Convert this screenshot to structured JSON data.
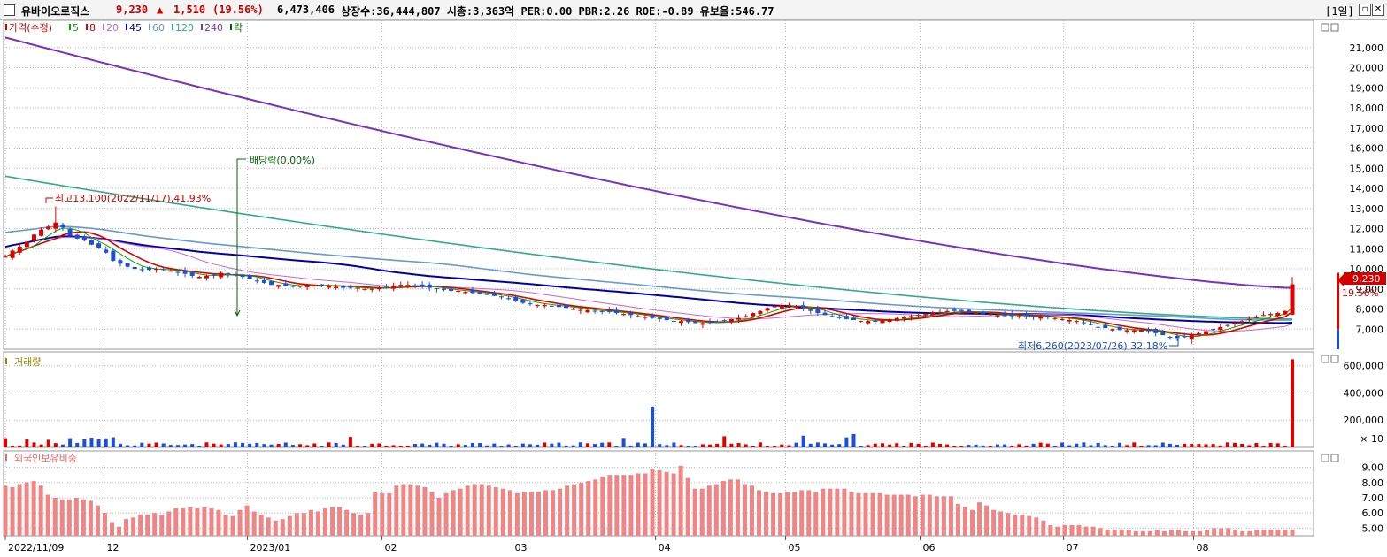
{
  "header": {
    "name": "유바이오로직스",
    "price": "9,230",
    "arrow": "▲",
    "change": "1,510",
    "change_pct": "(19.56%)",
    "volume": "6,473,406",
    "stats": "상장수:36,444,807 시총:3,363억 PER:0.00 PBR:2.26 ROE:-0.89 유보율:546.77",
    "period": "[1일]"
  },
  "price_legend": [
    {
      "text": "가격(수정)",
      "color": "#cc0000"
    },
    {
      "text": "5",
      "color": "#00aa00"
    },
    {
      "text": "8",
      "color": "#dd0000"
    },
    {
      "text": "20",
      "color": "#cc66cc"
    },
    {
      "text": "45",
      "color": "#0000aa"
    },
    {
      "text": "60",
      "color": "#6699cc"
    },
    {
      "text": "120",
      "color": "#33aa88"
    },
    {
      "text": "240",
      "color": "#7733bb"
    },
    {
      "text": "락",
      "color": "#006600"
    }
  ],
  "volume_legend": {
    "text": "거래량",
    "color": "#998800"
  },
  "foreign_legend": {
    "text": "외국인보유비중",
    "color": "#ee6666"
  },
  "annotations": {
    "high": "최고13,100(2022/11/17),41.93%",
    "low": "최저6,260(2023/07/26),32.18%",
    "dividend": "배당락(0.00%)"
  },
  "current_tag": {
    "price": "9,230",
    "pct": "19.56%"
  },
  "colors": {
    "up": "#e00000",
    "down": "#1c4fd8",
    "foreign": "#f08585",
    "grid": "#b7b7b7",
    "bg": "#ffffff"
  },
  "chart_data": [
    {
      "type": "candlestick",
      "title": "가격(수정)",
      "ylim": [
        6000,
        22000
      ],
      "y_ticks": [
        "7,000",
        "8,000",
        "9,000",
        "10,000",
        "11,000",
        "12,000",
        "13,000",
        "14,000",
        "15,000",
        "16,000",
        "17,000",
        "18,000",
        "19,000",
        "20,000",
        "21,000"
      ],
      "x_ticks": [
        "2022/11/09",
        "12",
        "2023/01",
        "02",
        "03",
        "04",
        "05",
        "06",
        "07",
        "08"
      ],
      "x_range": [
        "2022/11/09",
        "2023/08/23"
      ],
      "close_series": [
        10600,
        10900,
        11100,
        11350,
        11700,
        11950,
        12100,
        12300,
        12050,
        11650,
        11500,
        11400,
        11200,
        11050,
        10800,
        10400,
        10250,
        10100,
        10000,
        9950,
        9950,
        10000,
        9950,
        9900,
        9800,
        9750,
        9650,
        9600,
        9650,
        9700,
        9800,
        9750,
        9700,
        9600,
        9500,
        9400,
        9300,
        9200,
        9200,
        9150,
        9100,
        9150,
        9200,
        9200,
        9150,
        9150,
        9100,
        9050,
        9050,
        9050,
        9000,
        9000,
        9050,
        9100,
        9150,
        9200,
        9200,
        9150,
        9100,
        9050,
        9000,
        8950,
        8900,
        8900,
        8850,
        8800,
        8750,
        8700,
        8650,
        8600,
        8500,
        8400,
        8300,
        8250,
        8200,
        8200,
        8150,
        8100,
        8050,
        8000,
        7950,
        7950,
        7900,
        7850,
        7850,
        7800,
        7750,
        7700,
        7650,
        7600,
        7550,
        7500,
        7450,
        7400,
        7400,
        7350,
        7300,
        7300,
        7300,
        7350,
        7400,
        7500,
        7550,
        7650,
        7800,
        7900,
        8050,
        8150,
        8200,
        8200,
        8150,
        8050,
        7900,
        7800,
        7700,
        7600,
        7550,
        7500,
        7450,
        7400,
        7400,
        7400,
        7450,
        7500,
        7550,
        7600,
        7650,
        7700,
        7750,
        7800,
        7850,
        7900,
        7900,
        7900,
        7850,
        7800,
        7750,
        7750,
        7700,
        7650,
        7650,
        7650,
        7650,
        7600,
        7600,
        7600,
        7550,
        7500,
        7450,
        7400,
        7300,
        7200,
        7100,
        7050,
        7000,
        6950,
        6950,
        6950,
        6950,
        6900,
        6800,
        6700,
        6600,
        6550,
        6600,
        6700,
        6800,
        6900,
        7000,
        7100,
        7200,
        7300,
        7400,
        7500,
        7600,
        7700,
        7750,
        7800,
        7900,
        9230
      ],
      "ohlc_sample": [
        {
          "date": "2022/11/17",
          "high": 13100,
          "note": "최고"
        },
        {
          "date": "2023/07/26",
          "low": 6260,
          "note": "최저"
        },
        {
          "date": "2023/08/23",
          "open": 7720,
          "close": 9230,
          "high": 9600,
          "low": 7700
        }
      ],
      "moving_averages": [
        {
          "name": "5",
          "color": "#00aa00"
        },
        {
          "name": "8",
          "color": "#dd0000"
        },
        {
          "name": "20",
          "color": "#cc66cc"
        },
        {
          "name": "45",
          "color": "#0000aa",
          "values_start_end": [
            12000,
            7300
          ]
        },
        {
          "name": "60",
          "color": "#6699cc",
          "values_start_end": [
            13000,
            7500
          ]
        },
        {
          "name": "120",
          "color": "#33aa88",
          "values_start_end": [
            14600,
            7500
          ]
        },
        {
          "name": "240",
          "color": "#7733bb",
          "values_start_end": [
            21500,
            9050
          ]
        }
      ]
    },
    {
      "type": "bar",
      "title": "거래량",
      "ylim": [
        0,
        650000
      ],
      "y_ticks": [
        "200,000",
        "400,000",
        "600,000"
      ],
      "unit": "× 10",
      "notable": [
        {
          "date": "2023/04/03",
          "value": 300000
        },
        {
          "date": "2023/08/23",
          "value": 647341
        }
      ]
    },
    {
      "type": "bar",
      "title": "외국인보유비중",
      "ylim": [
        4.5,
        9.5
      ],
      "y_ticks": [
        "5.00",
        "6.00",
        "7.00",
        "8.00",
        "9.00"
      ],
      "values": [
        7.8,
        7.7,
        7.9,
        8.0,
        8.1,
        7.8,
        7.2,
        7.0,
        6.9,
        6.9,
        7.0,
        6.9,
        6.8,
        6.5,
        6.0,
        5.4,
        5.1,
        5.6,
        5.7,
        5.9,
        5.9,
        6.0,
        5.9,
        6.1,
        6.3,
        6.3,
        6.4,
        6.3,
        6.4,
        6.3,
        6.2,
        5.9,
        5.8,
        6.2,
        6.5,
        6.1,
        5.9,
        5.7,
        5.5,
        5.6,
        5.8,
        6.0,
        6.0,
        6.2,
        6.1,
        6.3,
        6.4,
        6.4,
        6.2,
        6.0,
        5.9,
        6.0,
        7.4,
        7.3,
        7.3,
        7.8,
        7.9,
        7.9,
        7.8,
        7.7,
        7.4,
        7.0,
        7.3,
        7.5,
        7.6,
        7.8,
        7.9,
        7.9,
        7.8,
        7.7,
        7.6,
        7.5,
        7.3,
        7.4,
        7.4,
        7.4,
        7.5,
        7.5,
        7.6,
        7.8,
        7.9,
        8.0,
        8.1,
        8.2,
        8.4,
        8.5,
        8.5,
        8.5,
        8.5,
        8.6,
        8.6,
        8.9,
        8.8,
        8.7,
        8.6,
        9.1,
        8.3,
        7.6,
        7.6,
        7.8,
        7.9,
        8.1,
        8.2,
        8.2,
        7.9,
        7.8,
        7.5,
        7.4,
        7.3,
        7.3,
        7.4,
        7.4,
        7.5,
        7.5,
        7.4,
        7.6,
        7.6,
        7.6,
        7.6,
        7.4,
        7.3,
        7.3,
        7.3,
        7.3,
        7.2,
        7.2,
        7.2,
        7.2,
        7.1,
        7.2,
        7.2,
        7.1,
        7.1,
        7.1,
        6.6,
        6.4,
        6.2,
        6.7,
        6.5,
        6.2,
        6.1,
        6.0,
        5.9,
        5.9,
        5.8,
        5.7,
        5.5,
        5.2,
        5.1,
        5.2,
        5.2,
        5.2,
        5.1,
        5.1,
        5.0,
        4.9,
        4.9,
        4.9,
        4.9,
        4.8,
        4.8,
        4.8,
        4.9,
        4.8,
        4.9,
        4.9,
        4.8,
        4.8,
        4.8,
        4.9,
        5.0,
        5.0,
        5.0,
        4.9,
        4.8,
        4.8,
        4.9,
        4.9,
        4.9,
        4.9,
        4.9,
        4.9
      ]
    }
  ]
}
